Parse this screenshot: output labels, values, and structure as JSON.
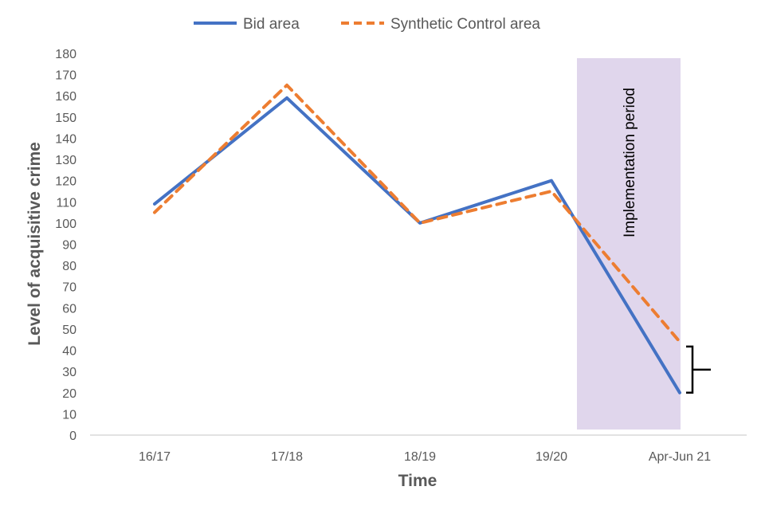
{
  "chart_data": {
    "type": "line",
    "title": "",
    "xlabel": "Time",
    "ylabel": "Level of acquisitive crime",
    "categories": [
      "16/17",
      "17/18",
      "18/19",
      "19/20",
      "Apr-Jun 21"
    ],
    "ylim": [
      0,
      180
    ],
    "yticks": [
      0,
      10,
      20,
      30,
      40,
      50,
      60,
      70,
      80,
      90,
      100,
      110,
      120,
      130,
      140,
      150,
      160,
      170,
      180
    ],
    "grid": false,
    "legend": "top",
    "series": [
      {
        "name": "Bid area",
        "values": [
          109,
          159,
          100,
          120,
          20
        ],
        "color": "#4472C4",
        "style": "solid"
      },
      {
        "name": "Synthetic Control area",
        "values": [
          105,
          165,
          100,
          115,
          44
        ],
        "color": "#ED7D31",
        "style": "dashed"
      }
    ],
    "shaded_region": {
      "label": "Implementation period",
      "from_category": "19/20",
      "to_category": "Apr-Jun 21",
      "color": "#E0D6EC"
    },
    "annotations": [
      {
        "type": "bracket",
        "category": "Apr-Jun 21",
        "between_series": [
          "Bid area",
          "Synthetic Control area"
        ]
      }
    ]
  }
}
